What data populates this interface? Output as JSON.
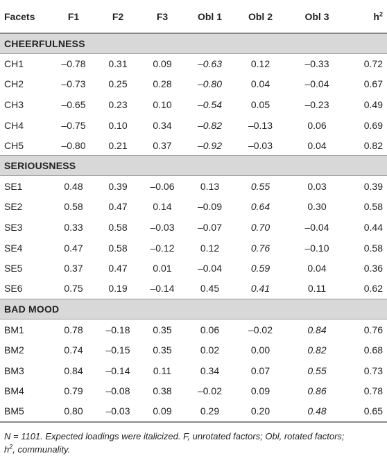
{
  "header": {
    "facets": "Facets",
    "f1": "F1",
    "f2": "F2",
    "f3": "F3",
    "obl1": "Obl 1",
    "obl2": "Obl 2",
    "obl3": "Obl 3",
    "h2_base": "h",
    "h2_sup": "2"
  },
  "sections": [
    {
      "title": "CHEERFULNESS",
      "rows": [
        {
          "facet": "CH1",
          "f1": "–0.78",
          "f2": "0.31",
          "f3": "0.09",
          "obl1": "–0.63",
          "obl2": "0.12",
          "obl3": "–0.33",
          "h2": "0.72"
        },
        {
          "facet": "CH2",
          "f1": "–0.73",
          "f2": "0.25",
          "f3": "0.28",
          "obl1": "–0.80",
          "obl2": "0.04",
          "obl3": "–0.04",
          "h2": "0.67"
        },
        {
          "facet": "CH3",
          "f1": "–0.65",
          "f2": "0.23",
          "f3": "0.10",
          "obl1": "–0.54",
          "obl2": "0.05",
          "obl3": "–0.23",
          "h2": "0.49"
        },
        {
          "facet": "CH4",
          "f1": "–0.75",
          "f2": "0.10",
          "f3": "0.34",
          "obl1": "–0.82",
          "obl2": "–0.13",
          "obl3": "0.06",
          "h2": "0.69"
        },
        {
          "facet": "CH5",
          "f1": "–0.80",
          "f2": "0.21",
          "f3": "0.37",
          "obl1": "–0.92",
          "obl2": "–0.03",
          "obl3": "0.04",
          "h2": "0.82"
        }
      ]
    },
    {
      "title": "SERIOUSNESS",
      "rows": [
        {
          "facet": "SE1",
          "f1": "0.48",
          "f2": "0.39",
          "f3": "–0.06",
          "obl1": "0.13",
          "obl2": "0.55",
          "obl3": "0.03",
          "h2": "0.39"
        },
        {
          "facet": "SE2",
          "f1": "0.58",
          "f2": "0.47",
          "f3": "0.14",
          "obl1": "–0.09",
          "obl2": "0.64",
          "obl3": "0.30",
          "h2": "0.58"
        },
        {
          "facet": "SE3",
          "f1": "0.33",
          "f2": "0.58",
          "f3": "–0.03",
          "obl1": "–0.07",
          "obl2": "0.70",
          "obl3": "–0.04",
          "h2": "0.44"
        },
        {
          "facet": "SE4",
          "f1": "0.47",
          "f2": "0.58",
          "f3": "–0.12",
          "obl1": "0.12",
          "obl2": "0.76",
          "obl3": "–0.10",
          "h2": "0.58"
        },
        {
          "facet": "SE5",
          "f1": "0.37",
          "f2": "0.47",
          "f3": "0.01",
          "obl1": "–0.04",
          "obl2": "0.59",
          "obl3": "0.04",
          "h2": "0.36"
        },
        {
          "facet": "SE6",
          "f1": "0.75",
          "f2": "0.19",
          "f3": "–0.14",
          "obl1": "0.45",
          "obl2": "0.41",
          "obl3": "0.11",
          "h2": "0.62"
        }
      ]
    },
    {
      "title": "BAD MOOD",
      "rows": [
        {
          "facet": "BM1",
          "f1": "0.78",
          "f2": "–0.18",
          "f3": "0.35",
          "obl1": "0.06",
          "obl2": "–0.02",
          "obl3": "0.84",
          "h2": "0.76"
        },
        {
          "facet": "BM2",
          "f1": "0.74",
          "f2": "–0.15",
          "f3": "0.35",
          "obl1": "0.02",
          "obl2": "0.00",
          "obl3": "0.82",
          "h2": "0.68"
        },
        {
          "facet": "BM3",
          "f1": "0.84",
          "f2": "–0.14",
          "f3": "0.11",
          "obl1": "0.34",
          "obl2": "0.07",
          "obl3": "0.55",
          "h2": "0.73"
        },
        {
          "facet": "BM4",
          "f1": "0.79",
          "f2": "–0.08",
          "f3": "0.38",
          "obl1": "–0.02",
          "obl2": "0.09",
          "obl3": "0.86",
          "h2": "0.78"
        },
        {
          "facet": "BM5",
          "f1": "0.80",
          "f2": "–0.03",
          "f3": "0.09",
          "obl1": "0.29",
          "obl2": "0.20",
          "obl3": "0.48",
          "h2": "0.65"
        }
      ]
    }
  ],
  "note": {
    "line1": "N = 1101. Expected loadings were italicized. F, unrotated factors; Obl, rotated factors;",
    "line2_base": "h",
    "line2_sup": "2",
    "line2_rest": ", communality."
  }
}
